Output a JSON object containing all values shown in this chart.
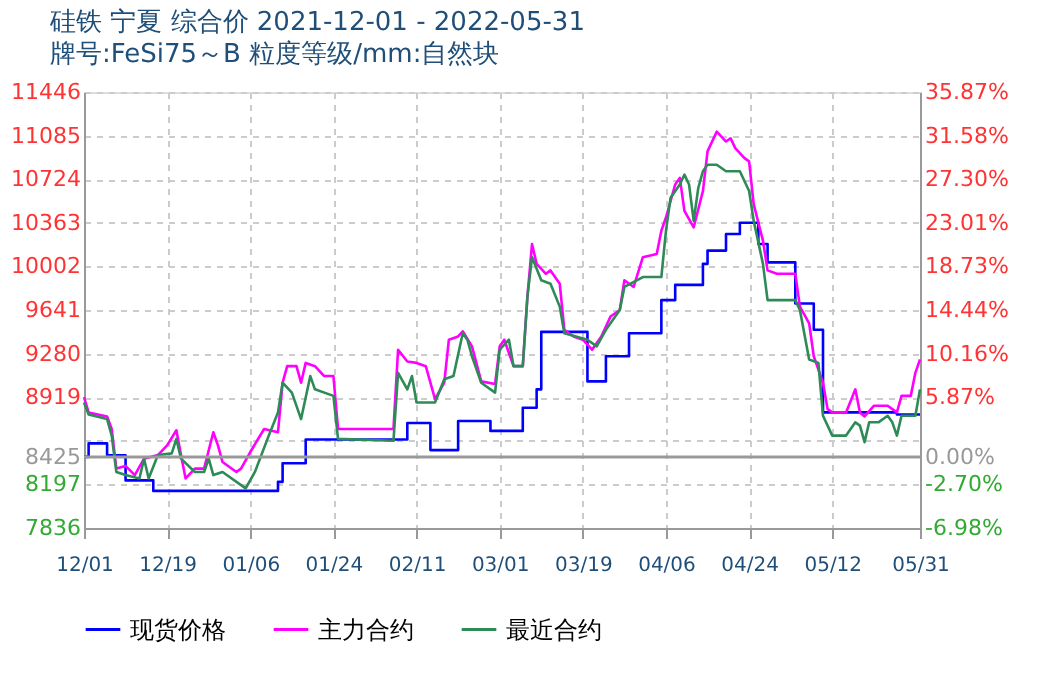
{
  "chart_data": {
    "type": "line",
    "title": "硅铁 宁夏 综合价 2021-12-01 - 2022-05-31",
    "subtitle": "牌号:FeSi75～B 粒度等级/mm:自然块",
    "xlim": [
      "2021-12-01",
      "2022-05-31"
    ],
    "xticks": [
      {
        "value": "2021-12-01",
        "label": "12/01"
      },
      {
        "value": "2021-12-19",
        "label": "12/19"
      },
      {
        "value": "2022-01-06",
        "label": "01/06"
      },
      {
        "value": "2022-01-24",
        "label": "01/24"
      },
      {
        "value": "2022-02-11",
        "label": "02/11"
      },
      {
        "value": "2022-03-01",
        "label": "03/01"
      },
      {
        "value": "2022-03-19",
        "label": "03/19"
      },
      {
        "value": "2022-04-06",
        "label": "04/06"
      },
      {
        "value": "2022-04-24",
        "label": "04/24"
      },
      {
        "value": "2022-05-12",
        "label": "05/12"
      },
      {
        "value": "2022-05-31",
        "label": "05/31"
      }
    ],
    "ylim": [
      7836,
      11446
    ],
    "yticks": [
      7836,
      8197,
      8425,
      {
        "value": 8558,
        "label": null
      },
      8919,
      9280,
      9641,
      10002,
      10363,
      10724,
      11085,
      11446
    ],
    "y2lim": [
      -6.98,
      35.87
    ],
    "y2ticks": [
      {
        "value": -6.98,
        "label": "-6.98%"
      },
      {
        "value": -2.7,
        "label": "-2.70%"
      },
      {
        "value": 0,
        "label": "0.00%"
      },
      {
        "value": 5.87,
        "label": "5.87%"
      },
      {
        "value": 10.16,
        "label": "10.16%"
      },
      {
        "value": 14.44,
        "label": "14.44%"
      },
      {
        "value": 18.73,
        "label": "18.73%"
      },
      {
        "value": 23.01,
        "label": "23.01%"
      },
      {
        "value": 27.3,
        "label": "27.30%"
      },
      {
        "value": 31.58,
        "label": "31.58%"
      },
      {
        "value": 35.87,
        "label": "35.87%"
      }
    ],
    "ref_lines": [
      {
        "axis": "y2",
        "value": 0,
        "color": "#999999"
      }
    ],
    "grid": true,
    "legend": "bottom",
    "series": [
      {
        "name": "现货价格",
        "color": "#0000ff",
        "type": "step",
        "x": [
          "2021-12-01",
          "2021-12-02",
          "2021-12-06",
          "2021-12-10",
          "2021-12-16",
          "2022-01-12",
          "2022-01-13",
          "2022-01-18",
          "2022-02-09",
          "2022-02-14",
          "2022-02-20",
          "2022-02-27",
          "2022-03-06",
          "2022-03-09",
          "2022-03-10",
          "2022-03-20",
          "2022-03-24",
          "2022-03-29",
          "2022-04-05",
          "2022-04-08",
          "2022-04-14",
          "2022-04-15",
          "2022-04-19",
          "2022-04-22",
          "2022-04-26",
          "2022-04-28",
          "2022-05-04",
          "2022-05-08",
          "2022-05-10",
          "2022-05-26",
          "2022-05-31"
        ],
        "values": [
          8425,
          8537,
          8438,
          8230,
          8143,
          8218,
          8372,
          8569,
          8705,
          8481,
          8722,
          8640,
          8832,
          8984,
          9460,
          9050,
          9258,
          9449,
          9723,
          9849,
          10023,
          10133,
          10270,
          10363,
          10187,
          10035,
          9695,
          9477,
          8793,
          8776,
          8776
        ]
      },
      {
        "name": "主力合约",
        "color": "#ff00ff",
        "x": [
          "2021-12-01",
          "2021-12-02",
          "2021-12-06",
          "2021-12-07",
          "2021-12-08",
          "2021-12-10",
          "2021-12-12",
          "2021-12-14",
          "2021-12-17",
          "2021-12-19",
          "2021-12-21",
          "2021-12-22",
          "2021-12-23",
          "2021-12-25",
          "2021-12-27",
          "2021-12-29",
          "2021-12-30",
          "2021-12-31",
          "2022-01-03",
          "2022-01-04",
          "2022-01-06",
          "2022-01-09",
          "2022-01-12",
          "2022-01-13",
          "2022-01-14",
          "2022-01-16",
          "2022-01-17",
          "2022-01-18",
          "2022-01-20",
          "2022-01-22",
          "2022-01-24",
          "2022-01-25",
          "2022-01-27",
          "2022-02-06",
          "2022-02-07",
          "2022-02-09",
          "2022-02-11",
          "2022-02-13",
          "2022-02-15",
          "2022-02-17",
          "2022-02-18",
          "2022-02-20",
          "2022-02-21",
          "2022-02-23",
          "2022-02-25",
          "2022-02-28",
          "2022-03-01",
          "2022-03-02",
          "2022-03-04",
          "2022-03-06",
          "2022-03-07",
          "2022-03-08",
          "2022-03-09",
          "2022-03-11",
          "2022-03-12",
          "2022-03-14",
          "2022-03-15",
          "2022-03-17",
          "2022-03-19",
          "2022-03-21",
          "2022-03-23",
          "2022-03-25",
          "2022-03-27",
          "2022-03-28",
          "2022-03-30",
          "2022-04-01",
          "2022-04-04",
          "2022-04-05",
          "2022-04-06",
          "2022-04-08",
          "2022-04-09",
          "2022-04-10",
          "2022-04-12",
          "2022-04-14",
          "2022-04-15",
          "2022-04-17",
          "2022-04-19",
          "2022-04-20",
          "2022-04-21",
          "2022-04-23",
          "2022-04-24",
          "2022-04-25",
          "2022-04-27",
          "2022-04-28",
          "2022-04-30",
          "2022-05-04",
          "2022-05-05",
          "2022-05-07",
          "2022-05-08",
          "2022-05-10",
          "2022-05-11",
          "2022-05-12",
          "2022-05-15",
          "2022-05-17",
          "2022-05-18",
          "2022-05-19",
          "2022-05-21",
          "2022-05-24",
          "2022-05-26",
          "2022-05-27",
          "2022-05-29",
          "2022-05-30",
          "2022-05-31"
        ],
        "values": [
          8919,
          8793,
          8760,
          8656,
          8328,
          8350,
          8274,
          8410,
          8440,
          8520,
          8645,
          8440,
          8246,
          8328,
          8328,
          8629,
          8520,
          8382,
          8300,
          8328,
          8465,
          8656,
          8629,
          9039,
          9176,
          9176,
          9039,
          9203,
          9176,
          9094,
          9094,
          8656,
          8656,
          8656,
          9312,
          9214,
          9203,
          9176,
          8903,
          9039,
          9395,
          9422,
          9465,
          9340,
          9050,
          9028,
          9340,
          9395,
          9176,
          9176,
          9751,
          10187,
          10023,
          9941,
          9969,
          9859,
          9477,
          9422,
          9395,
          9312,
          9422,
          9587,
          9641,
          9887,
          9832,
          10078,
          10105,
          10297,
          10407,
          10680,
          10735,
          10461,
          10325,
          10626,
          10954,
          11118,
          11036,
          11063,
          10981,
          10899,
          10872,
          10516,
          10215,
          9969,
          9941,
          9941,
          9669,
          9531,
          9258,
          9039,
          8820,
          8793,
          8793,
          8984,
          8793,
          8760,
          8848,
          8848,
          8793,
          8930,
          8930,
          9121,
          9231
        ]
      },
      {
        "name": "最近合约",
        "color": "#2e8b57",
        "x": [
          "2021-12-01",
          "2021-12-02",
          "2021-12-06",
          "2021-12-07",
          "2021-12-08",
          "2021-12-10",
          "2021-12-13",
          "2021-12-14",
          "2021-12-15",
          "2021-12-17",
          "2021-12-20",
          "2021-12-21",
          "2021-12-22",
          "2021-12-25",
          "2021-12-27",
          "2021-12-28",
          "2021-12-29",
          "2021-12-31",
          "2022-01-05",
          "2022-01-07",
          "2022-01-10",
          "2022-01-12",
          "2022-01-13",
          "2022-01-15",
          "2022-01-17",
          "2022-01-19",
          "2022-01-20",
          "2022-01-24",
          "2022-01-25",
          "2022-02-06",
          "2022-02-07",
          "2022-02-09",
          "2022-02-10",
          "2022-02-11",
          "2022-02-15",
          "2022-02-17",
          "2022-02-19",
          "2022-02-21",
          "2022-02-22",
          "2022-02-23",
          "2022-02-25",
          "2022-02-28",
          "2022-03-01",
          "2022-03-03",
          "2022-03-04",
          "2022-03-06",
          "2022-03-07",
          "2022-03-08",
          "2022-03-10",
          "2022-03-12",
          "2022-03-14",
          "2022-03-15",
          "2022-03-20",
          "2022-03-22",
          "2022-03-24",
          "2022-03-27",
          "2022-03-28",
          "2022-04-01",
          "2022-04-05",
          "2022-04-06",
          "2022-04-07",
          "2022-04-09",
          "2022-04-10",
          "2022-04-11",
          "2022-04-12",
          "2022-04-13",
          "2022-04-14",
          "2022-04-15",
          "2022-04-17",
          "2022-04-19",
          "2022-04-22",
          "2022-04-24",
          "2022-04-25",
          "2022-04-27",
          "2022-04-28",
          "2022-05-04",
          "2022-05-05",
          "2022-05-07",
          "2022-05-09",
          "2022-05-10",
          "2022-05-12",
          "2022-05-15",
          "2022-05-17",
          "2022-05-18",
          "2022-05-19",
          "2022-05-20",
          "2022-05-22",
          "2022-05-24",
          "2022-05-25",
          "2022-05-26",
          "2022-05-27",
          "2022-05-30",
          "2022-05-31"
        ],
        "values": [
          8875,
          8776,
          8738,
          8601,
          8300,
          8274,
          8246,
          8410,
          8246,
          8440,
          8454,
          8574,
          8410,
          8300,
          8300,
          8410,
          8274,
          8300,
          8164,
          8300,
          8601,
          8793,
          9039,
          8957,
          8738,
          9094,
          8984,
          8930,
          8574,
          8558,
          9121,
          8984,
          9094,
          8875,
          8875,
          9067,
          9094,
          9449,
          9395,
          9258,
          9039,
          8957,
          9312,
          9395,
          9176,
          9176,
          9751,
          10078,
          9887,
          9859,
          9669,
          9449,
          9395,
          9340,
          9477,
          9641,
          9832,
          9914,
          9914,
          10297,
          10571,
          10680,
          10762,
          10680,
          10379,
          10653,
          10790,
          10844,
          10844,
          10790,
          10790,
          10626,
          10379,
          10023,
          9723,
          9723,
          9641,
          9231,
          9203,
          8765,
          8601,
          8601,
          8711,
          8684,
          8547,
          8711,
          8711,
          8765,
          8711,
          8601,
          8765,
          8765,
          8984
        ]
      }
    ]
  }
}
